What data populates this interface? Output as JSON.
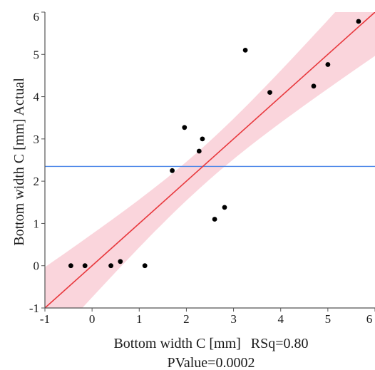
{
  "chart_data": {
    "type": "scatter",
    "xlabel": "Bottom width C [mm]",
    "rsq_label": "RSq=0.80",
    "pvalue_label": "PValue=0.0002",
    "ylabel": "Bottom width C [mm] Actual",
    "xlim": [
      -1,
      6
    ],
    "ylim": [
      -1,
      6
    ],
    "xticks": [
      -1,
      0,
      1,
      2,
      3,
      4,
      5,
      6
    ],
    "yticks": [
      -1,
      0,
      1,
      2,
      3,
      4,
      5,
      6
    ],
    "grid": false,
    "points": [
      {
        "x": -0.45,
        "y": 0.0
      },
      {
        "x": -0.15,
        "y": 0.0
      },
      {
        "x": 0.4,
        "y": 0.0
      },
      {
        "x": 0.6,
        "y": 0.1
      },
      {
        "x": 1.12,
        "y": 0.0
      },
      {
        "x": 1.7,
        "y": 2.25
      },
      {
        "x": 1.96,
        "y": 3.27
      },
      {
        "x": 2.27,
        "y": 2.71
      },
      {
        "x": 2.34,
        "y": 3.0
      },
      {
        "x": 2.6,
        "y": 1.1
      },
      {
        "x": 2.81,
        "y": 1.38
      },
      {
        "x": 3.25,
        "y": 5.1
      },
      {
        "x": 3.77,
        "y": 4.1
      },
      {
        "x": 4.7,
        "y": 4.25
      },
      {
        "x": 5.0,
        "y": 4.76
      },
      {
        "x": 5.65,
        "y": 5.78
      }
    ],
    "fit_line": {
      "type": "identity",
      "color": "#e8383d"
    },
    "mean_line": {
      "y": 2.35,
      "color": "#4a86e8"
    },
    "confidence_band": {
      "color": "#f6b2bf",
      "opacity": 0.55
    }
  }
}
